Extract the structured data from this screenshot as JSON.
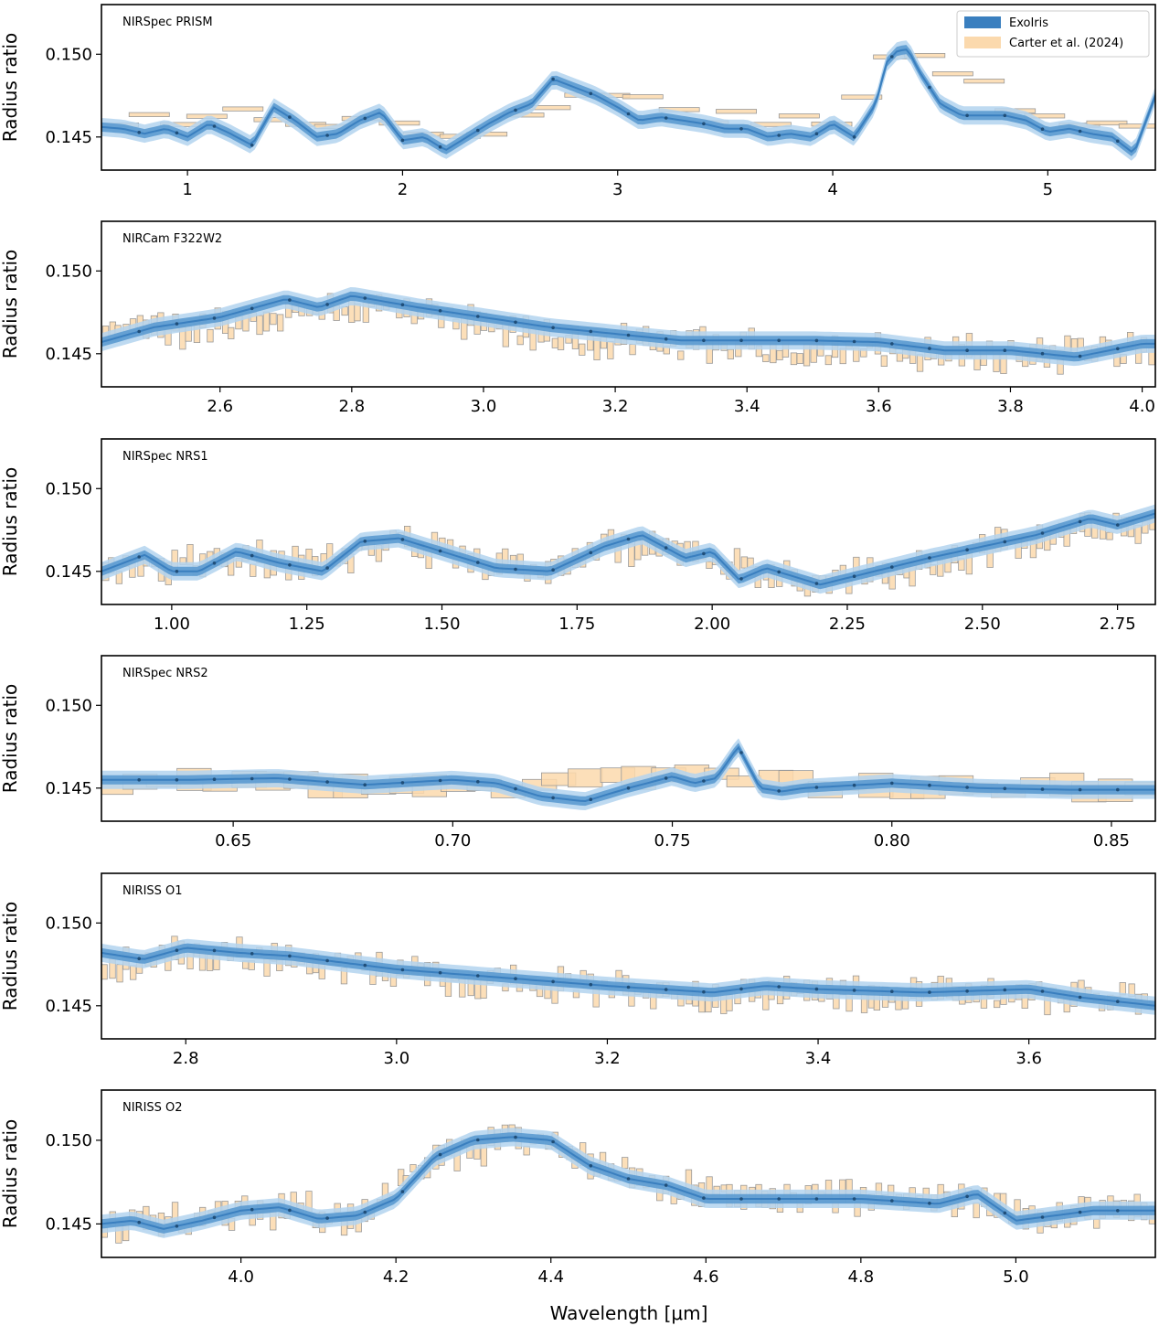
{
  "colors": {
    "model": "#3a7fbf",
    "model_band_outer": "#b3d3ee",
    "model_band_inner": "#5b9ad0",
    "model_points": "#1f4e79",
    "data_fill": "#fbd9ad",
    "data_edge": "#9a9a9a",
    "frame": "#000000"
  },
  "chart_data": [
    {
      "type": "line",
      "title": "NIRSpec PRISM",
      "ylabel": "Radius ratio",
      "xlabel": "",
      "xlim": [
        0.6,
        5.5
      ],
      "ylim": [
        0.143,
        0.153
      ],
      "xticks": [
        1,
        2,
        3,
        4,
        5
      ],
      "xtick_labels": [
        "1",
        "2",
        "3",
        "4",
        "5"
      ],
      "yticks": [
        0.145,
        0.15
      ],
      "ytick_labels": [
        "0.145",
        "0.150"
      ],
      "legend": {
        "position": "top-right",
        "entries": [
          "ExoIris",
          "Carter et al. (2024)"
        ]
      },
      "series": [
        {
          "name": "ExoIris",
          "x": [
            0.6,
            0.7,
            0.8,
            0.9,
            1.0,
            1.1,
            1.2,
            1.3,
            1.4,
            1.5,
            1.6,
            1.7,
            1.8,
            1.9,
            2.0,
            2.1,
            2.2,
            2.3,
            2.4,
            2.5,
            2.6,
            2.7,
            2.8,
            2.9,
            3.0,
            3.1,
            3.2,
            3.3,
            3.4,
            3.5,
            3.6,
            3.7,
            3.8,
            3.9,
            4.0,
            4.1,
            4.2,
            4.25,
            4.3,
            4.35,
            4.4,
            4.5,
            4.6,
            4.7,
            4.8,
            4.9,
            5.0,
            5.1,
            5.2,
            5.3,
            5.4,
            5.5
          ],
          "y": [
            0.1456,
            0.1455,
            0.1452,
            0.1455,
            0.145,
            0.1458,
            0.1452,
            0.1445,
            0.1468,
            0.146,
            0.145,
            0.1452,
            0.146,
            0.1465,
            0.1448,
            0.145,
            0.1442,
            0.145,
            0.1458,
            0.1465,
            0.147,
            0.1485,
            0.148,
            0.1475,
            0.1468,
            0.146,
            0.1462,
            0.146,
            0.1458,
            0.1455,
            0.1455,
            0.145,
            0.1452,
            0.145,
            0.1458,
            0.145,
            0.147,
            0.1495,
            0.1502,
            0.1503,
            0.149,
            0.147,
            0.1463,
            0.1463,
            0.1463,
            0.146,
            0.1453,
            0.1455,
            0.1452,
            0.145,
            0.144,
            0.1475
          ]
        },
        {
          "name": "Carter et al. (2024)",
          "x": [
            0.65,
            1.0,
            1.25,
            1.5,
            1.8,
            2.1,
            2.35,
            2.6,
            2.8,
            3.1,
            3.4,
            3.7,
            3.9,
            4.05,
            4.25,
            4.4,
            4.55,
            4.75,
            4.95,
            5.15,
            5.35
          ],
          "y": [
            0.146,
            0.1455,
            0.1463,
            0.1462,
            0.1458,
            0.1452,
            0.1452,
            0.146,
            0.148,
            0.1475,
            0.1462,
            0.146,
            0.1458,
            0.1465,
            0.1498,
            0.1505,
            0.149,
            0.1475,
            0.1468,
            0.1463,
            0.146
          ]
        }
      ]
    },
    {
      "type": "line",
      "title": "NIRCam F322W2",
      "ylabel": "Radius ratio",
      "xlabel": "",
      "xlim": [
        2.42,
        4.02
      ],
      "ylim": [
        0.143,
        0.153
      ],
      "xticks": [
        2.6,
        2.8,
        3.0,
        3.2,
        3.4,
        3.6,
        3.8,
        4.0
      ],
      "xtick_labels": [
        "2.6",
        "2.8",
        "3.0",
        "3.2",
        "3.4",
        "3.6",
        "3.8",
        "4.0"
      ],
      "yticks": [
        0.145,
        0.15
      ],
      "ytick_labels": [
        "0.145",
        "0.150"
      ],
      "series": [
        {
          "name": "ExoIris",
          "x": [
            2.42,
            2.5,
            2.6,
            2.7,
            2.75,
            2.8,
            2.9,
            3.0,
            3.1,
            3.2,
            3.3,
            3.4,
            3.5,
            3.6,
            3.7,
            3.8,
            3.9,
            4.0
          ],
          "y": [
            0.1457,
            0.1466,
            0.1472,
            0.1483,
            0.1478,
            0.1485,
            0.1478,
            0.1472,
            0.1466,
            0.1462,
            0.1458,
            0.1458,
            0.1458,
            0.1457,
            0.1452,
            0.1452,
            0.1448,
            0.1456
          ]
        },
        {
          "name": "Carter et al. (2024)",
          "x": [
            2.45,
            2.55,
            2.65,
            2.75,
            2.85,
            2.95,
            3.05,
            3.15,
            3.25,
            3.35,
            3.45,
            3.55,
            3.65,
            3.75,
            3.85,
            3.95
          ],
          "y": [
            0.1462,
            0.1465,
            0.147,
            0.1478,
            0.1478,
            0.147,
            0.1462,
            0.1458,
            0.1455,
            0.1455,
            0.1452,
            0.1452,
            0.145,
            0.145,
            0.145,
            0.1452
          ]
        }
      ]
    },
    {
      "type": "line",
      "title": "NIRSpec NRS1",
      "ylabel": "Radius ratio",
      "xlabel": "",
      "xlim": [
        0.87,
        2.82
      ],
      "ylim": [
        0.143,
        0.153
      ],
      "xticks": [
        1.0,
        1.25,
        1.5,
        1.75,
        2.0,
        2.25,
        2.5,
        2.75
      ],
      "xtick_labels": [
        "1.00",
        "1.25",
        "1.50",
        "1.75",
        "2.00",
        "2.25",
        "2.50",
        "2.75"
      ],
      "yticks": [
        0.145,
        0.15
      ],
      "ytick_labels": [
        "0.145",
        "0.150"
      ],
      "series": [
        {
          "name": "ExoIris",
          "x": [
            0.87,
            0.95,
            1.0,
            1.05,
            1.12,
            1.2,
            1.28,
            1.35,
            1.42,
            1.5,
            1.6,
            1.7,
            1.8,
            1.87,
            1.95,
            2.0,
            2.05,
            2.1,
            2.2,
            2.3,
            2.4,
            2.5,
            2.6,
            2.7,
            2.75,
            2.82
          ],
          "y": [
            0.145,
            0.146,
            0.145,
            0.145,
            0.1462,
            0.1455,
            0.145,
            0.1468,
            0.147,
            0.1462,
            0.1452,
            0.145,
            0.1465,
            0.1472,
            0.1458,
            0.1462,
            0.1445,
            0.1452,
            0.1442,
            0.145,
            0.1458,
            0.1465,
            0.1472,
            0.1482,
            0.1478,
            0.1485
          ]
        },
        {
          "name": "Carter et al. (2024)",
          "x": [
            0.9,
            1.0,
            1.1,
            1.2,
            1.3,
            1.4,
            1.5,
            1.6,
            1.7,
            1.8,
            1.9,
            2.0,
            2.1,
            2.2,
            2.3,
            2.4,
            2.5,
            2.6,
            2.7,
            2.8
          ],
          "y": [
            0.1452,
            0.1452,
            0.1458,
            0.1455,
            0.1455,
            0.1468,
            0.1462,
            0.1452,
            0.1452,
            0.1465,
            0.1465,
            0.1458,
            0.145,
            0.1445,
            0.1448,
            0.1455,
            0.1462,
            0.1468,
            0.1475,
            0.1478
          ]
        }
      ]
    },
    {
      "type": "line",
      "title": "NIRSpec NRS2",
      "ylabel": "Radius ratio",
      "xlabel": "",
      "xlim": [
        0.62,
        0.86
      ],
      "ylim": [
        0.143,
        0.153
      ],
      "xticks": [
        0.65,
        0.7,
        0.75,
        0.8,
        0.85
      ],
      "xtick_labels": [
        "0.65",
        "0.70",
        "0.75",
        "0.80",
        "0.85"
      ],
      "yticks": [
        0.145,
        0.15
      ],
      "ytick_labels": [
        "0.145",
        "0.150"
      ],
      "series": [
        {
          "name": "ExoIris",
          "x": [
            0.62,
            0.64,
            0.66,
            0.68,
            0.7,
            0.71,
            0.72,
            0.73,
            0.74,
            0.75,
            0.755,
            0.76,
            0.765,
            0.77,
            0.775,
            0.78,
            0.8,
            0.82,
            0.84,
            0.86
          ],
          "y": [
            0.1455,
            0.1455,
            0.1456,
            0.1452,
            0.1455,
            0.1453,
            0.1445,
            0.1442,
            0.145,
            0.1457,
            0.1453,
            0.1456,
            0.1475,
            0.145,
            0.1448,
            0.145,
            0.1453,
            0.145,
            0.1449,
            0.1449
          ]
        },
        {
          "name": "Carter et al. (2024)",
          "x": [
            0.635,
            0.66,
            0.685,
            0.71,
            0.735,
            0.76,
            0.785,
            0.81,
            0.835,
            0.855
          ],
          "y": [
            0.1452,
            0.1455,
            0.1452,
            0.145,
            0.1455,
            0.1458,
            0.1452,
            0.145,
            0.145,
            0.1448
          ]
        }
      ]
    },
    {
      "type": "line",
      "title": "NIRISS O1",
      "ylabel": "Radius ratio",
      "xlabel": "",
      "xlim": [
        2.72,
        3.72
      ],
      "ylim": [
        0.143,
        0.153
      ],
      "xticks": [
        2.8,
        3.0,
        3.2,
        3.4,
        3.6
      ],
      "xtick_labels": [
        "2.8",
        "3.0",
        "3.2",
        "3.4",
        "3.6"
      ],
      "yticks": [
        0.145,
        0.15
      ],
      "ytick_labels": [
        "0.145",
        "0.150"
      ],
      "series": [
        {
          "name": "ExoIris",
          "x": [
            2.72,
            2.76,
            2.8,
            2.85,
            2.9,
            3.0,
            3.1,
            3.2,
            3.3,
            3.35,
            3.4,
            3.5,
            3.6,
            3.65,
            3.72
          ],
          "y": [
            0.1482,
            0.1478,
            0.1485,
            0.1482,
            0.148,
            0.1472,
            0.1467,
            0.1462,
            0.1458,
            0.1462,
            0.146,
            0.1458,
            0.146,
            0.1455,
            0.145
          ]
        },
        {
          "name": "Carter et al. (2024)",
          "x": [
            2.75,
            2.8,
            2.9,
            3.0,
            3.1,
            3.2,
            3.3,
            3.4,
            3.5,
            3.6,
            3.7
          ],
          "y": [
            0.1475,
            0.1482,
            0.1478,
            0.147,
            0.1465,
            0.146,
            0.1457,
            0.1457,
            0.1457,
            0.1457,
            0.1455
          ]
        }
      ]
    },
    {
      "type": "line",
      "title": "NIRISS O2",
      "ylabel": "Radius ratio",
      "xlabel": "Wavelength [μm]",
      "xlim": [
        3.82,
        5.18
      ],
      "ylim": [
        0.143,
        0.153
      ],
      "xticks": [
        4.0,
        4.2,
        4.4,
        4.6,
        4.8,
        5.0
      ],
      "xtick_labels": [
        "4.0",
        "4.2",
        "4.4",
        "4.6",
        "4.8",
        "5.0"
      ],
      "yticks": [
        0.145,
        0.15
      ],
      "ytick_labels": [
        "0.145",
        "0.150"
      ],
      "series": [
        {
          "name": "ExoIris",
          "x": [
            3.82,
            3.86,
            3.9,
            3.95,
            4.0,
            4.05,
            4.1,
            4.15,
            4.2,
            4.25,
            4.3,
            4.35,
            4.4,
            4.45,
            4.5,
            4.55,
            4.6,
            4.7,
            4.8,
            4.9,
            4.95,
            5.0,
            5.05,
            5.1,
            5.18
          ],
          "y": [
            0.145,
            0.1452,
            0.1447,
            0.1452,
            0.1458,
            0.146,
            0.1453,
            0.1455,
            0.1465,
            0.149,
            0.15,
            0.1502,
            0.15,
            0.1485,
            0.1477,
            0.1473,
            0.1465,
            0.1465,
            0.1465,
            0.1462,
            0.1468,
            0.1452,
            0.1455,
            0.1458,
            0.1458
          ]
        },
        {
          "name": "Carter et al. (2024)",
          "x": [
            3.85,
            3.95,
            4.05,
            4.15,
            4.25,
            4.35,
            4.45,
            4.55,
            4.65,
            4.75,
            4.85,
            4.95,
            5.05,
            5.15
          ],
          "y": [
            0.145,
            0.1452,
            0.1458,
            0.1455,
            0.1488,
            0.15,
            0.149,
            0.1472,
            0.1465,
            0.1465,
            0.1465,
            0.1462,
            0.1455,
            0.1457
          ]
        }
      ]
    }
  ]
}
